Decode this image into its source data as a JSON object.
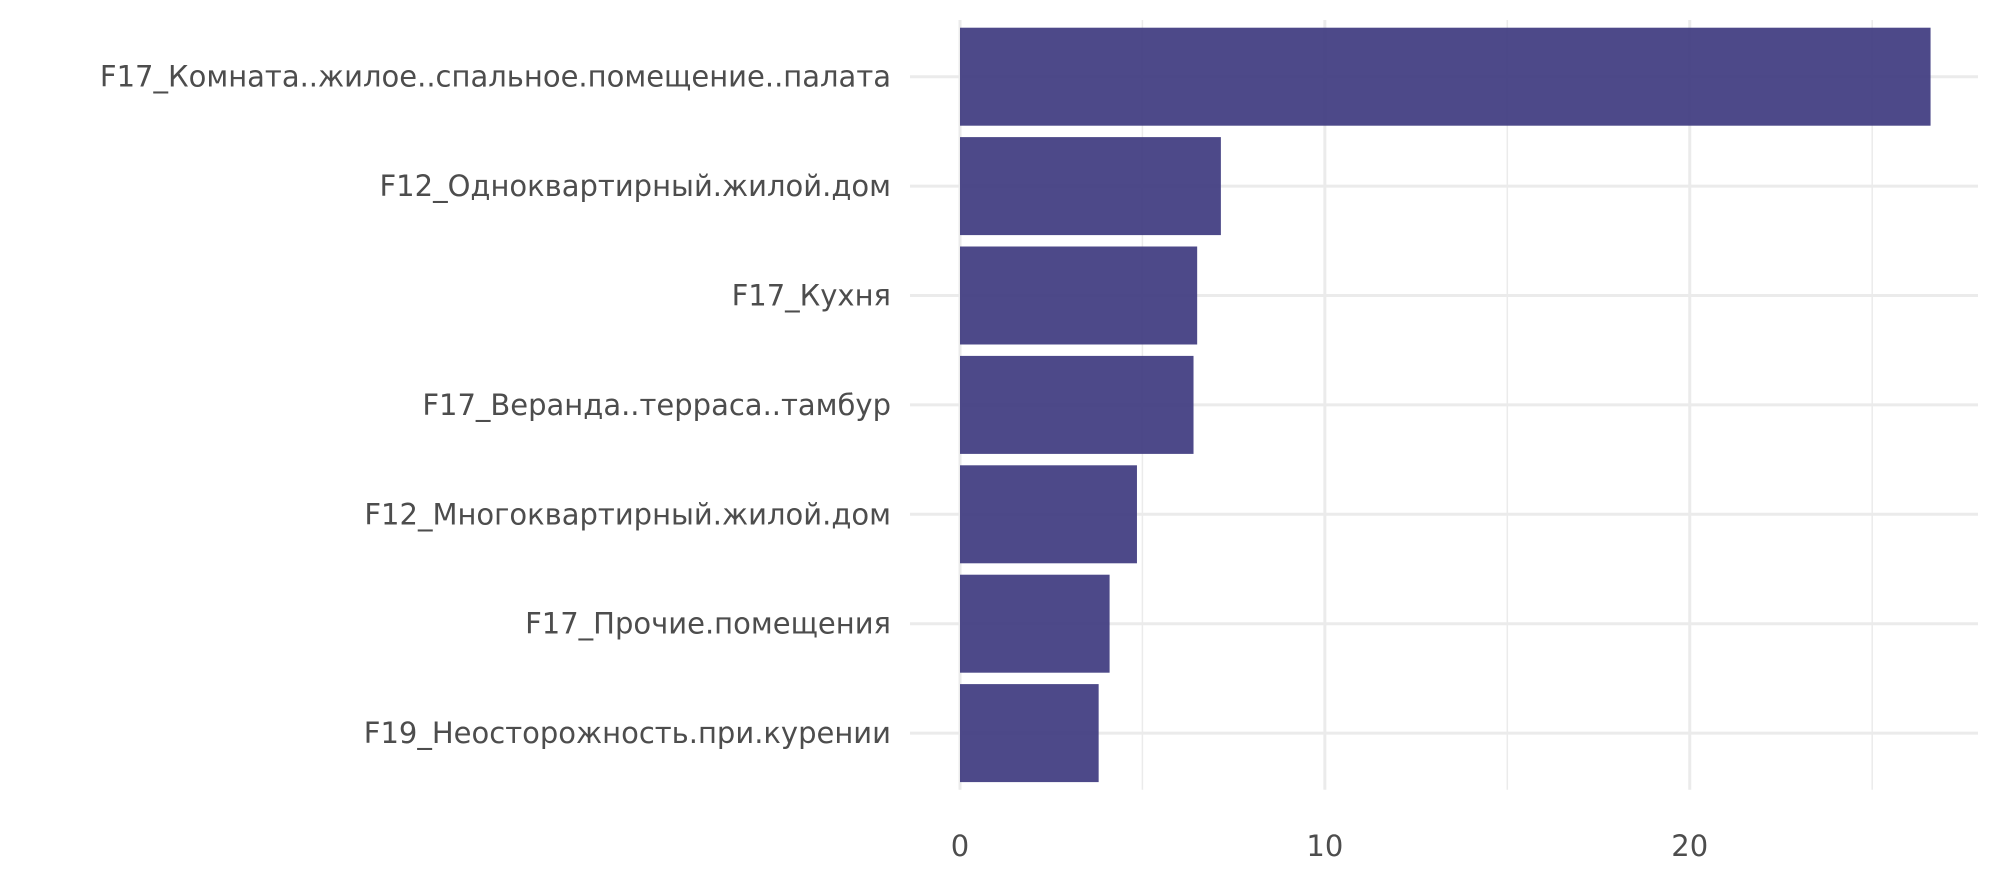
{
  "chart_data": {
    "type": "bar",
    "orientation": "horizontal",
    "categories": [
      "F17_Комната..жилое..спальное.помещение..палата",
      "F12_Одноквартирный.жилой.дом",
      "F17_Кухня",
      "F17_Веранда..терраса..тамбур",
      "F12_Многоквартирный.жилой.дом",
      "F17_Прочие.помещения",
      "F19_Неосторожность.при.курении"
    ],
    "values": [
      26.6,
      7.15,
      6.5,
      6.4,
      4.85,
      4.1,
      3.8
    ],
    "xlim": [
      0,
      27.9
    ],
    "x_ticks": [
      0,
      10,
      20
    ],
    "x_tick_labels": [
      "0",
      "10",
      "20"
    ],
    "title": "",
    "xlabel": "",
    "ylabel": "",
    "grid": true,
    "legend": "none",
    "bar_color": "#3f3b80",
    "grid_color": "#ebebeb",
    "text_color": "#4d4d4d"
  }
}
